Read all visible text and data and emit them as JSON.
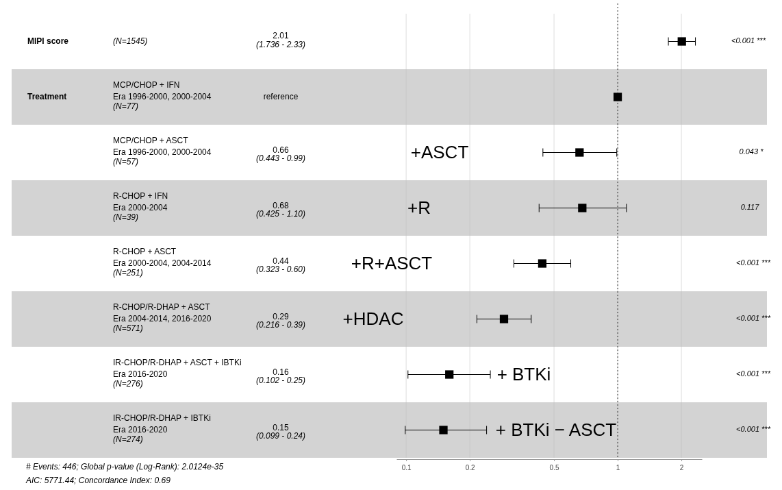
{
  "chart_data": {
    "type": "scatter",
    "orientation": "horizontal",
    "log": "x",
    "marker": "square",
    "grid": "x",
    "categories": [
      null,
      null,
      null,
      null,
      null,
      null,
      null,
      null
    ],
    "series": [
      {
        "color": "#000000",
        "values": [
          2.01,
          1,
          0.66,
          0.68,
          0.44,
          0.29,
          0.16,
          0.15
        ],
        "errors": [
          [
            1.736,
            2.33
          ],
          null,
          [
            0.443,
            0.99
          ],
          [
            0.425,
            1.1
          ],
          [
            0.323,
            0.6
          ],
          [
            0.216,
            0.39
          ],
          [
            0.102,
            0.25
          ],
          [
            0.099,
            0.24
          ]
        ]
      }
    ],
    "xlim": [
      0.09,
      2.5
    ],
    "xticks": [
      0.1,
      0.2,
      0.5,
      1,
      2
    ],
    "ref_lines": [
      {
        "axis": "x",
        "value": 1,
        "line_style": "dotted",
        "color": "#333333"
      }
    ],
    "annotations": [
      "MIPI score",
      "Treatment",
      "MCP/CHOP + IFN",
      "MCP/CHOP + ASCT",
      "R-CHOP + IFN",
      "R-CHOP + ASCT",
      "R-CHOP/R-DHAP + ASCT",
      "IR-CHOP/R-DHAP + ASCT + IBTKi",
      "IR-CHOP/R-DHAP + IBTKi",
      "Era 1996-2000, 2000-2004",
      "Era 1996-2000, 2000-2004",
      "Era 2000-2004",
      "Era 2000-2004, 2004-2014",
      "Era 2004-2014, 2016-2020",
      "Era 2016-2020",
      "Era 2016-2020",
      "(N=1545)",
      "(N=77)",
      "(N=57)",
      "(N=39)",
      "(N=251)",
      "(N=571)",
      "(N=276)",
      "(N=274)",
      "2.01",
      "reference",
      "0.66",
      "0.68",
      "0.44",
      "0.29",
      "0.16",
      "0.15",
      "(1.736 - 2.33)",
      "(0.443 - 0.99)",
      "(0.425 - 1.10)",
      "(0.323 - 0.60)",
      "(0.216 - 0.39)",
      "(0.102 - 0.25)",
      "(0.099 - 0.24)",
      "+ASCT",
      "+R",
      "+R+ASCT",
      "+HDAC",
      "+ BTKi",
      "+ BTKi − ASCT",
      "<0.001 ***",
      "0.043 *",
      "0.117",
      "<0.001 ***",
      "<0.001 ***",
      "<0.001 ***",
      "<0.001 ***",
      "# Events: 446; Global p-value (Log-Rank): 2.0124e-35",
      "AIC: 5771.44; Concordance Index: 0.69"
    ]
  }
}
